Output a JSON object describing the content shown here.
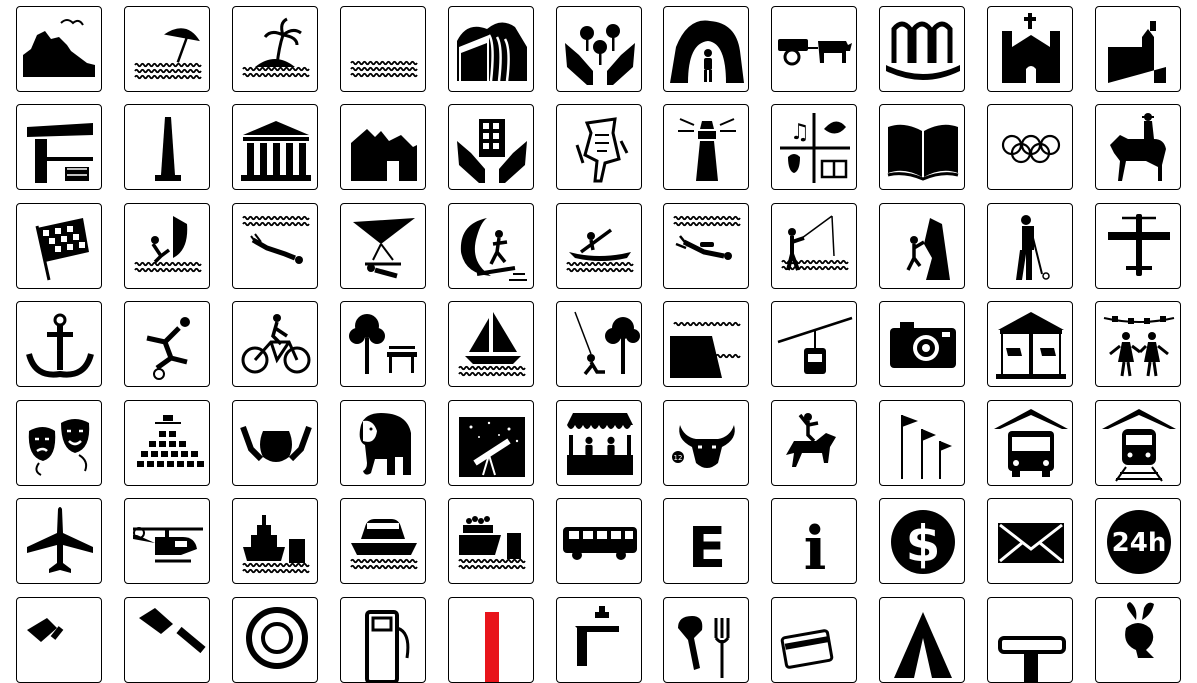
{
  "sheet_title": "",
  "colors": {
    "icon": "#000000",
    "tile_border": "#000000",
    "background": "#ffffff",
    "accent_partial": "#e8141b"
  },
  "tiles": [
    {
      "icon": "mountain-coast-icon"
    },
    {
      "icon": "beach-umbrella-icon"
    },
    {
      "icon": "island-palm-icon"
    },
    {
      "icon": "water-waves-icon"
    },
    {
      "icon": "waterfall-icon"
    },
    {
      "icon": "nature-reserve-hands-icon"
    },
    {
      "icon": "cave-icon"
    },
    {
      "icon": "rural-ox-cart-icon"
    },
    {
      "icon": "fountain-arches-icon"
    },
    {
      "icon": "church-icon"
    },
    {
      "icon": "fortress-icon"
    },
    {
      "icon": "train-station-icon"
    },
    {
      "icon": "monument-obelisk-icon"
    },
    {
      "icon": "classical-building-icon"
    },
    {
      "icon": "ruins-icon"
    },
    {
      "icon": "heritage-building-hands-icon"
    },
    {
      "icon": "rock-art-icon"
    },
    {
      "icon": "lighthouse-icon"
    },
    {
      "icon": "culture-arts-icon"
    },
    {
      "icon": "library-book-icon"
    },
    {
      "icon": "olympic-rings-icon"
    },
    {
      "icon": "horse-riding-icon"
    },
    {
      "icon": "racing-flag-icon"
    },
    {
      "icon": "windsurfing-icon"
    },
    {
      "icon": "diving-icon"
    },
    {
      "icon": "hang-gliding-icon"
    },
    {
      "icon": "surfing-icon"
    },
    {
      "icon": "canoeing-icon"
    },
    {
      "icon": "scuba-diving-icon"
    },
    {
      "icon": "fishing-icon"
    },
    {
      "icon": "climbing-icon"
    },
    {
      "icon": "golf-icon"
    },
    {
      "icon": "airfield-plane-icon"
    },
    {
      "icon": "anchor-icon"
    },
    {
      "icon": "football-icon"
    },
    {
      "icon": "cycling-icon"
    },
    {
      "icon": "picnic-park-icon"
    },
    {
      "icon": "sailing-icon"
    },
    {
      "icon": "playground-swing-icon"
    },
    {
      "icon": "dam-icon"
    },
    {
      "icon": "cable-car-icon"
    },
    {
      "icon": "camera-icon"
    },
    {
      "icon": "carousel-icon"
    },
    {
      "icon": "folk-dance-icon"
    },
    {
      "icon": "theatre-masks-icon"
    },
    {
      "icon": "amphitheatre-icon"
    },
    {
      "icon": "handicraft-pottery-icon"
    },
    {
      "icon": "elephant-zoo-icon"
    },
    {
      "icon": "observatory-icon"
    },
    {
      "icon": "market-stall-icon"
    },
    {
      "icon": "bullfight-icon",
      "label": "12"
    },
    {
      "icon": "rodeo-icon"
    },
    {
      "icon": "flags-icon"
    },
    {
      "icon": "bus-station-icon"
    },
    {
      "icon": "train-terminal-icon"
    },
    {
      "icon": "airplane-icon"
    },
    {
      "icon": "helicopter-icon"
    },
    {
      "icon": "ship-port-icon"
    },
    {
      "icon": "car-ferry-icon"
    },
    {
      "icon": "cargo-ferry-icon"
    },
    {
      "icon": "bus-icon"
    },
    {
      "icon": "letter-e-icon",
      "label": "E"
    },
    {
      "icon": "information-icon",
      "label": "i"
    },
    {
      "icon": "currency-exchange-icon",
      "label": "$"
    },
    {
      "icon": "mail-envelope-icon"
    },
    {
      "icon": "open-24h-icon",
      "label": "24h"
    },
    {
      "icon": "mechanic-wrench-icon"
    },
    {
      "icon": "tool-service-icon"
    },
    {
      "icon": "tyre-service-icon"
    },
    {
      "icon": "fuel-pump-icon"
    },
    {
      "icon": "first-aid-icon"
    },
    {
      "icon": "water-tap-icon"
    },
    {
      "icon": "restaurant-cutlery-icon"
    },
    {
      "icon": "payment-card-icon"
    },
    {
      "icon": "camping-tent-icon"
    },
    {
      "icon": "meeting-table-icon"
    },
    {
      "icon": "rabbit-icon"
    }
  ]
}
